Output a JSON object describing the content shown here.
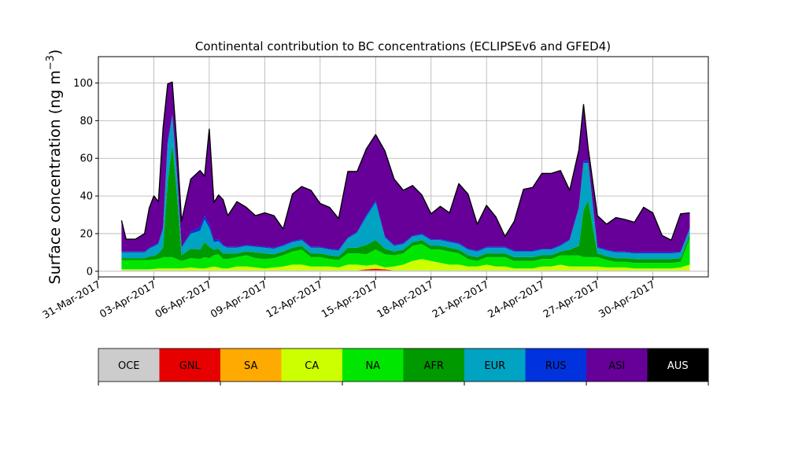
{
  "chart_data": {
    "type": "area",
    "title": "Continental contribution to BC concentrations (ECLIPSEv6 and GFED4)",
    "ylabel": "Surface concentration (ng m",
    "ylabel_sup": "−3",
    "ylabel_close": ")",
    "xlabel": "",
    "stacked": true,
    "grid": true,
    "xlim": [
      "2017-03-31",
      "2017-05-03"
    ],
    "ylim": [
      -3,
      114
    ],
    "y_ticks": [
      0,
      20,
      40,
      60,
      80,
      100
    ],
    "x_ticks": [
      {
        "date": "2017-03-31",
        "label": "31-Mar-2017"
      },
      {
        "date": "2017-04-03",
        "label": "03-Apr-2017"
      },
      {
        "date": "2017-04-06",
        "label": "06-Apr-2017"
      },
      {
        "date": "2017-04-09",
        "label": "09-Apr-2017"
      },
      {
        "date": "2017-04-12",
        "label": "12-Apr-2017"
      },
      {
        "date": "2017-04-15",
        "label": "15-Apr-2017"
      },
      {
        "date": "2017-04-18",
        "label": "18-Apr-2017"
      },
      {
        "date": "2017-04-21",
        "label": "21-Apr-2017"
      },
      {
        "date": "2017-04-24",
        "label": "24-Apr-2017"
      },
      {
        "date": "2017-04-27",
        "label": "27-Apr-2017"
      },
      {
        "date": "2017-04-30",
        "label": "30-Apr-2017"
      }
    ],
    "x": [
      "2017-04-01T06:00",
      "2017-04-01T12:00",
      "2017-04-02T00:00",
      "2017-04-02T12:00",
      "2017-04-02T18:00",
      "2017-04-03T00:00",
      "2017-04-03T06:00",
      "2017-04-03T12:00",
      "2017-04-03T18:00",
      "2017-04-04T00:00",
      "2017-04-04T06:00",
      "2017-04-04T12:00",
      "2017-04-05T00:00",
      "2017-04-05T12:00",
      "2017-04-05T18:00",
      "2017-04-06T00:00",
      "2017-04-06T06:00",
      "2017-04-06T12:00",
      "2017-04-06T18:00",
      "2017-04-07T00:00",
      "2017-04-07T12:00",
      "2017-04-08T00:00",
      "2017-04-08T12:00",
      "2017-04-09T00:00",
      "2017-04-09T12:00",
      "2017-04-10T00:00",
      "2017-04-10T12:00",
      "2017-04-11T00:00",
      "2017-04-11T12:00",
      "2017-04-12T00:00",
      "2017-04-12T12:00",
      "2017-04-13T00:00",
      "2017-04-13T12:00",
      "2017-04-14T00:00",
      "2017-04-14T12:00",
      "2017-04-15T00:00",
      "2017-04-15T12:00",
      "2017-04-16T00:00",
      "2017-04-16T12:00",
      "2017-04-17T00:00",
      "2017-04-17T12:00",
      "2017-04-18T00:00",
      "2017-04-18T12:00",
      "2017-04-19T00:00",
      "2017-04-19T12:00",
      "2017-04-20T00:00",
      "2017-04-20T12:00",
      "2017-04-21T00:00",
      "2017-04-21T12:00",
      "2017-04-22T00:00",
      "2017-04-22T12:00",
      "2017-04-23T00:00",
      "2017-04-23T12:00",
      "2017-04-24T00:00",
      "2017-04-24T12:00",
      "2017-04-25T00:00",
      "2017-04-25T12:00",
      "2017-04-26T00:00",
      "2017-04-26T06:00",
      "2017-04-26T12:00",
      "2017-04-27T00:00",
      "2017-04-27T12:00",
      "2017-04-28T00:00",
      "2017-04-28T12:00",
      "2017-04-29T00:00",
      "2017-04-29T12:00",
      "2017-04-30T00:00",
      "2017-04-30T12:00",
      "2017-05-01T00:00",
      "2017-05-01T12:00",
      "2017-05-02T00:00"
    ],
    "series": [
      {
        "name": "OCE",
        "color": "#cccccc",
        "values": [
          0.5,
          0.5,
          0.5,
          0.5,
          0.5,
          0.5,
          0.5,
          0.5,
          0.5,
          0.5,
          0.5,
          0.5,
          0.5,
          0.5,
          0.5,
          0.5,
          0.5,
          0.5,
          0.5,
          0.5,
          0.5,
          0.5,
          0.5,
          0.5,
          0.5,
          0.5,
          0.5,
          0.5,
          0.5,
          0.5,
          0.5,
          0.5,
          0.5,
          0.5,
          0.5,
          0.5,
          0.5,
          0.5,
          0.5,
          0.5,
          0.5,
          0.5,
          0.5,
          0.5,
          0.5,
          0.5,
          0.5,
          0.5,
          0.5,
          0.5,
          0.5,
          0.5,
          0.5,
          0.5,
          0.5,
          0.5,
          0.5,
          0.5,
          0.5,
          0.5,
          0.5,
          0.5,
          0.5,
          0.5,
          0.5,
          0.5,
          0.5,
          0.5,
          0.5,
          0.5,
          0.5
        ]
      },
      {
        "name": "GNL",
        "color": "#e60000",
        "values": [
          0,
          0,
          0,
          0,
          0,
          0,
          0,
          0,
          0,
          0,
          0,
          0,
          0,
          0,
          0,
          0,
          0,
          0,
          0,
          0,
          0,
          0,
          0,
          0,
          0,
          0,
          0,
          0,
          0,
          0,
          0,
          0,
          0,
          0,
          0.5,
          0.8,
          0.5,
          0,
          0,
          0,
          0,
          0,
          0,
          0,
          0,
          0,
          0,
          0,
          0,
          0,
          0,
          0,
          0,
          0,
          0,
          0,
          0,
          0,
          0,
          0,
          0,
          0,
          0,
          0,
          0,
          0,
          0,
          0,
          0,
          0,
          0
        ]
      },
      {
        "name": "SA",
        "color": "#ffaa00",
        "values": [
          0,
          0,
          0,
          0,
          0,
          0,
          0,
          0,
          0,
          0,
          0,
          0,
          0,
          0,
          0,
          0,
          0,
          0,
          0,
          0,
          0,
          0,
          0,
          0,
          0,
          0,
          0,
          0,
          0,
          0,
          0,
          0,
          0,
          0,
          0,
          0.3,
          0,
          0,
          0,
          0,
          0,
          0,
          0,
          0,
          0,
          0,
          0,
          0,
          0,
          0,
          0,
          0,
          0,
          0,
          0,
          0,
          0,
          0,
          0,
          0,
          0,
          0,
          0,
          0,
          0,
          0,
          0,
          0,
          0,
          0,
          0
        ]
      },
      {
        "name": "CA",
        "color": "#ccff00",
        "values": [
          0.5,
          0.5,
          0.5,
          0.5,
          0.5,
          0.7,
          1,
          1,
          1,
          1,
          1,
          1,
          1.5,
          1,
          1,
          1.5,
          2,
          1.5,
          1,
          1,
          2,
          2,
          1.5,
          1,
          1.5,
          2,
          3,
          3,
          2,
          2,
          2,
          1.5,
          3,
          3,
          2,
          2,
          1,
          2,
          3,
          5,
          6,
          5,
          4,
          3,
          3,
          2,
          2,
          3,
          2,
          2,
          1,
          1,
          1,
          2,
          2,
          3,
          2,
          2,
          2,
          2,
          2,
          1.5,
          1.5,
          1.5,
          1,
          1,
          1,
          1,
          1,
          1.5,
          3
        ]
      },
      {
        "name": "NA",
        "color": "#00e600",
        "values": [
          5,
          5,
          5,
          5,
          5,
          5,
          5,
          6,
          6,
          6,
          5,
          4,
          5,
          5,
          6,
          5,
          6,
          7,
          5,
          5,
          5,
          6,
          5,
          5,
          5,
          6,
          7,
          8,
          5,
          5,
          4,
          4,
          6,
          6,
          6,
          8,
          7,
          6,
          6,
          8,
          8,
          6,
          7,
          7,
          6,
          4,
          3,
          4,
          5,
          5,
          4,
          4,
          4,
          4,
          4,
          5,
          6,
          6,
          5,
          5,
          5,
          4,
          3,
          3,
          3,
          3,
          3,
          3,
          3,
          3,
          14
        ]
      },
      {
        "name": "AFR",
        "color": "#009900",
        "values": [
          1,
          1,
          1,
          1,
          2,
          2,
          3,
          5,
          40,
          60,
          35,
          3,
          5,
          5,
          8,
          6,
          3,
          3,
          3,
          3,
          2,
          2,
          3,
          3,
          2,
          2,
          2,
          2,
          2,
          2,
          2,
          2,
          3,
          3,
          5,
          5,
          3,
          2,
          2,
          2,
          2,
          2,
          2,
          2,
          2,
          2,
          2,
          2,
          2,
          2,
          2,
          2,
          2,
          2,
          2,
          2,
          3,
          5,
          25,
          30,
          2,
          2,
          2,
          2,
          2,
          2,
          2,
          2,
          2,
          2,
          2
        ]
      },
      {
        "name": "EUR",
        "color": "#00a3c1",
        "values": [
          3,
          3,
          3,
          3,
          4,
          5,
          5,
          10,
          20,
          15,
          10,
          4,
          8,
          10,
          12,
          10,
          4,
          4,
          4,
          3,
          3,
          3,
          3,
          3,
          3,
          3,
          3,
          3,
          3,
          3,
          3,
          3,
          5,
          8,
          15,
          20,
          6,
          3,
          3,
          3,
          3,
          3,
          3,
          3,
          3,
          3,
          3,
          3,
          3,
          3,
          3,
          3,
          3,
          3,
          3,
          3,
          5,
          20,
          25,
          20,
          3,
          3,
          3,
          3,
          3,
          3,
          3,
          3,
          3,
          3,
          3
        ]
      },
      {
        "name": "RUS",
        "color": "#0033dd",
        "values": [
          0.5,
          0.5,
          0.5,
          0.5,
          0.5,
          0.5,
          0.5,
          1,
          2,
          1,
          0.5,
          0.5,
          1,
          2,
          2,
          2,
          1,
          1,
          0.5,
          0.5,
          0.5,
          0.5,
          0.5,
          0.5,
          0.5,
          0.5,
          0.5,
          0.5,
          0.5,
          0.5,
          0.5,
          0.5,
          0.5,
          0.5,
          1,
          1,
          0.5,
          0.5,
          0.5,
          0.5,
          0.5,
          0.5,
          0.5,
          0.5,
          0.5,
          0.5,
          0.5,
          0.5,
          0.5,
          0.5,
          0.5,
          0.5,
          0.5,
          0.5,
          0.5,
          0.5,
          0.5,
          1,
          1,
          1,
          0.5,
          0.5,
          0.5,
          0.5,
          0.5,
          0.5,
          0.5,
          0.5,
          0.5,
          0.5,
          0.5
        ]
      },
      {
        "name": "ASI",
        "color": "#660099",
        "values": [
          16.5,
          6.5,
          6.5,
          9.5,
          21,
          26.3,
          22,
          52.5,
          30,
          17,
          15,
          13.5,
          28,
          30,
          21,
          50.5,
          20,
          23.5,
          24,
          16.5,
          24,
          20,
          16,
          18,
          17,
          8.5,
          25,
          28,
          30,
          23,
          22,
          16.5,
          35,
          32,
          35,
          35,
          45.5,
          35,
          28,
          26.5,
          20.5,
          13.5,
          17.5,
          15,
          31.5,
          29,
          14,
          22,
          16,
          5.5,
          15.5,
          32.5,
          33.5,
          40,
          40,
          39.5,
          26,
          30,
          30,
          7,
          16.5,
          13.5,
          18,
          17,
          16,
          24,
          21,
          9,
          6.5,
          20,
          8
        ]
      },
      {
        "name": "AUS",
        "color": "#000000",
        "values": [
          0,
          0,
          0,
          0,
          0,
          0,
          0,
          0,
          0,
          0,
          0,
          0,
          0,
          0,
          0,
          0,
          0,
          0,
          0,
          0,
          0,
          0,
          0,
          0,
          0,
          0,
          0,
          0,
          0,
          0,
          0,
          0,
          0,
          0,
          0,
          0,
          0,
          0,
          0,
          0,
          0,
          0,
          0,
          0,
          0,
          0,
          0,
          0,
          0,
          0,
          0,
          0,
          0,
          0,
          0,
          0,
          0,
          0,
          0,
          0,
          0,
          0,
          0,
          0,
          0,
          0,
          0,
          0,
          0,
          0,
          0
        ]
      }
    ]
  }
}
